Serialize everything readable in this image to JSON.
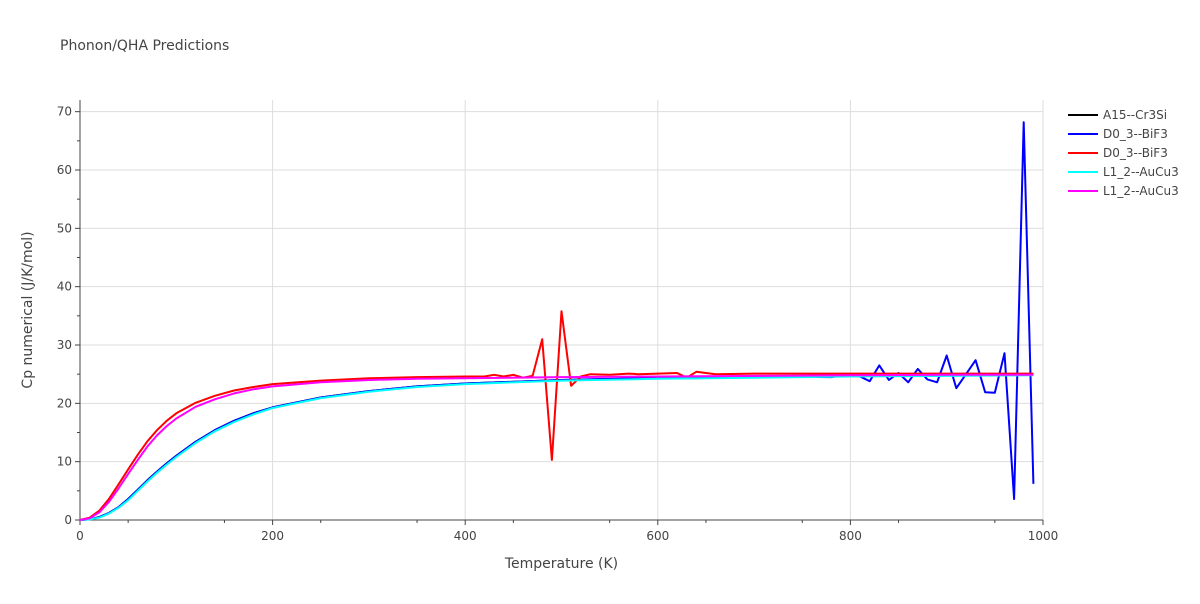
{
  "chart_data": {
    "type": "line",
    "title": "Phonon/QHA Predictions",
    "xlabel": "Temperature (K)",
    "ylabel": "Cp numerical (J/K/mol)",
    "xlim": [
      0,
      1000
    ],
    "ylim": [
      0,
      72
    ],
    "x_ticks": [
      0,
      200,
      400,
      600,
      800,
      1000
    ],
    "y_ticks": [
      0,
      10,
      20,
      30,
      40,
      50,
      60,
      70
    ],
    "grid": true,
    "legend_position": "top-right",
    "series": [
      {
        "name": "A15--Cr3Si",
        "color": "#000000",
        "x": [
          0,
          10,
          20,
          30,
          40,
          50,
          60,
          70,
          80,
          90,
          100,
          120,
          140,
          160,
          180,
          200,
          250,
          300,
          350,
          400,
          500,
          600,
          700,
          800,
          900,
          990
        ],
        "y": [
          0,
          0.1,
          0.5,
          1.2,
          2.2,
          3.6,
          5.2,
          6.8,
          8.3,
          9.7,
          11.0,
          13.4,
          15.4,
          17.0,
          18.3,
          19.3,
          21.0,
          22.1,
          22.9,
          23.4,
          24.0,
          24.3,
          24.5,
          24.7,
          24.8,
          24.9
        ]
      },
      {
        "name": "D0_3--BiF3",
        "color": "#0000ff",
        "x": [
          0,
          10,
          20,
          30,
          40,
          50,
          60,
          70,
          80,
          90,
          100,
          120,
          140,
          160,
          180,
          200,
          250,
          300,
          350,
          400,
          500,
          600,
          640,
          700,
          780,
          800,
          810,
          820,
          830,
          840,
          850,
          860,
          870,
          880,
          890,
          900,
          910,
          920,
          930,
          940,
          950,
          960,
          970,
          980,
          990
        ],
        "y": [
          0,
          0.1,
          0.5,
          1.2,
          2.2,
          3.6,
          5.2,
          6.8,
          8.3,
          9.7,
          11.0,
          13.4,
          15.4,
          17.0,
          18.3,
          19.3,
          21.0,
          22.1,
          22.9,
          23.4,
          24.0,
          24.4,
          24.3,
          24.6,
          24.5,
          25.0,
          24.6,
          23.8,
          26.5,
          24.0,
          25.2,
          23.6,
          25.9,
          24.1,
          23.6,
          28.2,
          22.6,
          25.0,
          27.4,
          21.9,
          21.8,
          28.6,
          3.6,
          68.2,
          6.2
        ]
      },
      {
        "name": "D0_3--BiF3",
        "color": "#ff0000",
        "x": [
          0,
          10,
          20,
          30,
          40,
          50,
          60,
          70,
          80,
          90,
          100,
          120,
          140,
          160,
          180,
          200,
          250,
          300,
          350,
          400,
          420,
          430,
          440,
          450,
          460,
          470,
          480,
          490,
          500,
          510,
          520,
          530,
          550,
          570,
          580,
          600,
          620,
          630,
          640,
          660,
          700,
          800,
          900,
          990
        ],
        "y": [
          0,
          0.4,
          1.6,
          3.6,
          6.1,
          8.7,
          11.2,
          13.5,
          15.4,
          17.0,
          18.3,
          20.1,
          21.3,
          22.2,
          22.8,
          23.3,
          23.9,
          24.3,
          24.5,
          24.6,
          24.6,
          24.9,
          24.6,
          24.9,
          24.4,
          24.7,
          31.0,
          10.3,
          35.8,
          23.0,
          24.6,
          25.0,
          24.9,
          25.1,
          25.0,
          25.1,
          25.2,
          24.4,
          25.4,
          25.0,
          25.1,
          25.1,
          25.1,
          25.1
        ]
      },
      {
        "name": "L1_2--AuCu3",
        "color": "#00ffff",
        "x": [
          0,
          10,
          20,
          30,
          40,
          50,
          60,
          70,
          80,
          90,
          100,
          120,
          140,
          160,
          180,
          200,
          250,
          300,
          350,
          400,
          500,
          600,
          700,
          800,
          900,
          990
        ],
        "y": [
          0,
          0.1,
          0.4,
          1.1,
          2.1,
          3.4,
          5.0,
          6.6,
          8.1,
          9.5,
          10.8,
          13.2,
          15.2,
          16.8,
          18.1,
          19.2,
          20.9,
          22.0,
          22.8,
          23.3,
          23.9,
          24.2,
          24.4,
          24.6,
          24.7,
          24.8
        ]
      },
      {
        "name": "L1_2--AuCu3",
        "color": "#ff00ff",
        "x": [
          0,
          10,
          20,
          30,
          40,
          50,
          60,
          70,
          80,
          90,
          100,
          120,
          140,
          160,
          180,
          200,
          250,
          300,
          350,
          400,
          500,
          600,
          700,
          800,
          900,
          990
        ],
        "y": [
          0,
          0.3,
          1.3,
          3.1,
          5.4,
          7.9,
          10.3,
          12.6,
          14.5,
          16.1,
          17.4,
          19.4,
          20.7,
          21.7,
          22.4,
          22.9,
          23.6,
          24.0,
          24.2,
          24.3,
          24.5,
          24.6,
          24.7,
          24.8,
          24.9,
          24.9
        ]
      }
    ]
  }
}
